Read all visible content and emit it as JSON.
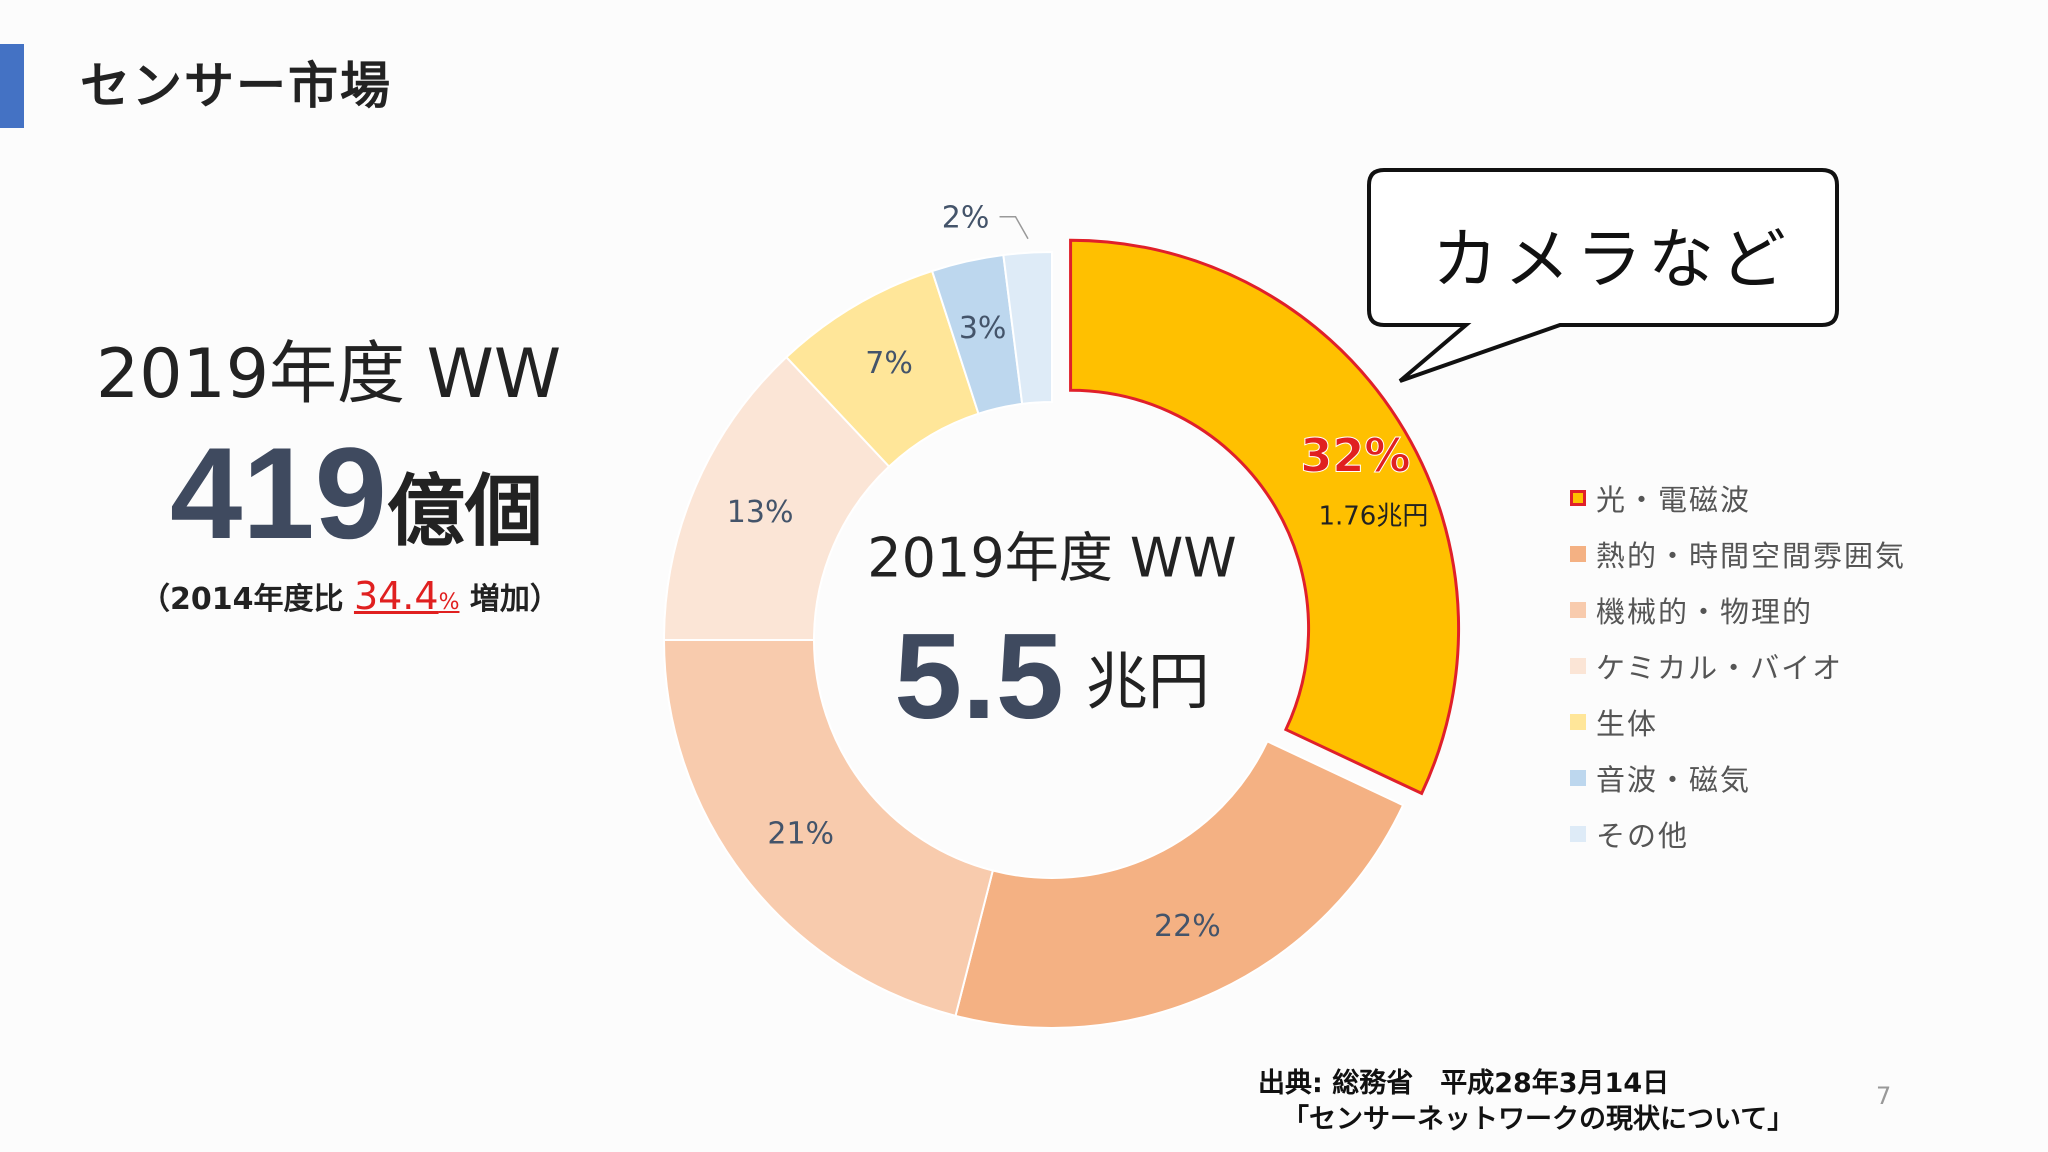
{
  "slide": {
    "title": "センサー市場",
    "page_number": "7"
  },
  "left": {
    "year_label": "2019年度 WW",
    "count_number": "419",
    "count_unit": "億個",
    "note_prefix": "（2014年度比 ",
    "note_growth": "34.4",
    "note_pct": "%",
    "note_suffix": " 増加）"
  },
  "center": {
    "year_label": "2019年度 WW",
    "value": "5.5",
    "unit": "兆円"
  },
  "callout": {
    "text": "カメラなど"
  },
  "source": {
    "line1": "出典: 総務省　平成28年3月14日",
    "line2": "「センサーネットワークの現状について」"
  },
  "chart_data": {
    "type": "pie",
    "variant": "donut",
    "series": [
      {
        "name": "光・電磁波",
        "value": 32,
        "label": "32%",
        "sub_label": "1.76兆円",
        "color": "#ffc000",
        "exploded": true,
        "stroke": "#e0202a"
      },
      {
        "name": "熱的・時間空間雰囲気",
        "value": 22,
        "label": "22%",
        "color": "#f4b183"
      },
      {
        "name": "機械的・物理的",
        "value": 21,
        "label": "21%",
        "color": "#f8cbad"
      },
      {
        "name": "ケミカル・バイオ",
        "value": 13,
        "label": "13%",
        "color": "#fbe5d6"
      },
      {
        "name": "生体",
        "value": 7,
        "label": "7%",
        "color": "#ffe699"
      },
      {
        "name": "音波・磁気",
        "value": 3,
        "label": "3%",
        "color": "#bdd7ee"
      },
      {
        "name": "その他",
        "value": 2,
        "label": "2%",
        "color": "#deebf7"
      }
    ],
    "legend_position": "right"
  }
}
